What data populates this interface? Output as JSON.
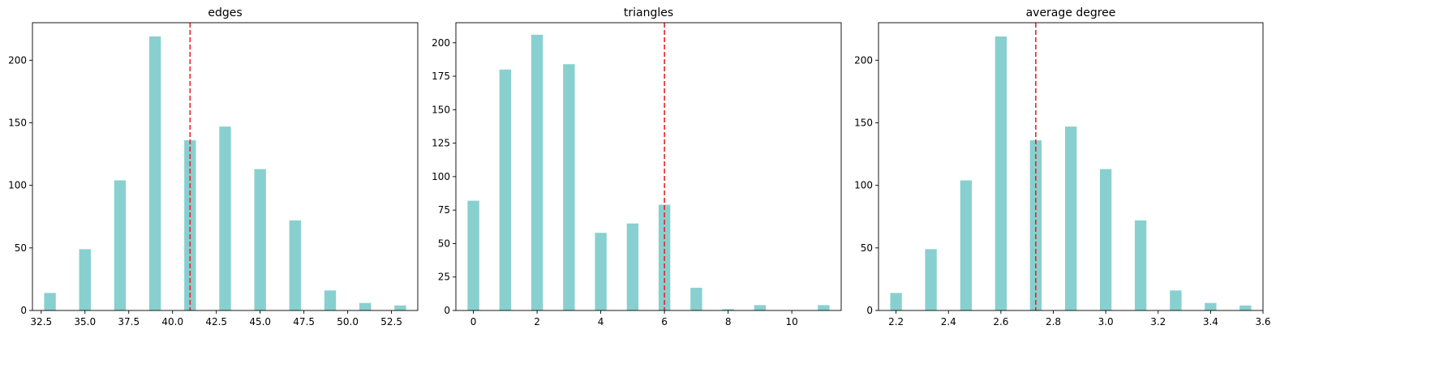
{
  "chart_data": [
    {
      "type": "bar",
      "title": "edges",
      "xlabel": "",
      "ylabel": "",
      "xlim": [
        32.0,
        54.0
      ],
      "ylim": [
        0,
        230
      ],
      "xticks": [
        32.5,
        35.0,
        37.5,
        40.0,
        42.5,
        45.0,
        47.5,
        50.0,
        52.5
      ],
      "xtick_labels": [
        "32.5",
        "35.0",
        "37.5",
        "40.0",
        "42.5",
        "45.0",
        "47.5",
        "50.0",
        "52.5"
      ],
      "yticks": [
        0,
        50,
        100,
        150,
        200
      ],
      "ytick_labels": [
        "0",
        "50",
        "100",
        "150",
        "200"
      ],
      "bar_width": 0.667,
      "x": [
        33,
        35,
        37,
        39,
        41,
        43,
        45,
        47,
        49,
        51,
        53
      ],
      "values": [
        14,
        49,
        104,
        219,
        136,
        147,
        113,
        72,
        16,
        6,
        4
      ],
      "reference_line": 41,
      "bar_color": "#88d0cf",
      "line_color": "#e8232a",
      "grid": false,
      "legend": "none"
    },
    {
      "type": "bar",
      "title": "triangles",
      "xlabel": "",
      "ylabel": "",
      "xlim": [
        -0.55,
        11.55
      ],
      "ylim": [
        0,
        215
      ],
      "xticks": [
        0,
        2,
        4,
        6,
        8,
        10
      ],
      "xtick_labels": [
        "0",
        "2",
        "4",
        "6",
        "8",
        "10"
      ],
      "yticks": [
        0,
        25,
        50,
        75,
        100,
        125,
        150,
        175,
        200
      ],
      "ytick_labels": [
        "0",
        "25",
        "50",
        "75",
        "100",
        "125",
        "150",
        "175",
        "200"
      ],
      "bar_width": 0.367,
      "x": [
        0,
        1,
        2,
        3,
        4,
        5,
        6,
        7,
        8,
        9,
        11
      ],
      "values": [
        82,
        180,
        206,
        184,
        58,
        65,
        79,
        17,
        1,
        4,
        4
      ],
      "reference_line": 6,
      "bar_color": "#88d0cf",
      "line_color": "#e8232a",
      "grid": false,
      "legend": "none"
    },
    {
      "type": "bar",
      "title": "average degree",
      "xlabel": "",
      "ylabel": "",
      "xlim": [
        2.133,
        3.6
      ],
      "ylim": [
        0,
        230
      ],
      "xticks": [
        2.2,
        2.4,
        2.6,
        2.8,
        3.0,
        3.2,
        3.4,
        3.6
      ],
      "xtick_labels": [
        "2.2",
        "2.4",
        "2.6",
        "2.8",
        "3.0",
        "3.2",
        "3.4",
        "3.6"
      ],
      "yticks": [
        0,
        50,
        100,
        150,
        200
      ],
      "ytick_labels": [
        "0",
        "50",
        "100",
        "150",
        "200"
      ],
      "bar_width": 0.0444,
      "x": [
        2.2,
        2.333,
        2.467,
        2.6,
        2.733,
        2.867,
        3.0,
        3.133,
        3.267,
        3.4,
        3.533
      ],
      "values": [
        14,
        49,
        104,
        219,
        136,
        147,
        113,
        72,
        16,
        6,
        4
      ],
      "reference_line": 2.733,
      "bar_color": "#88d0cf",
      "line_color": "#e8232a",
      "grid": false,
      "legend": "none"
    }
  ]
}
